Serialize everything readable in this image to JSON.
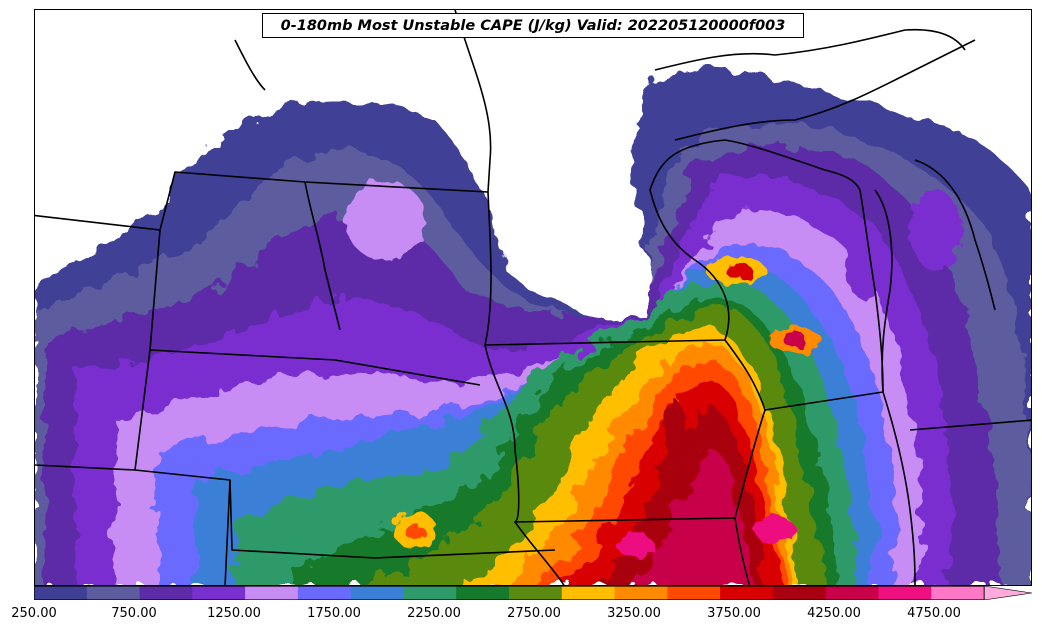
{
  "title": "0-180mb Most Unstable CAPE (J/kg) Valid: 202205120000f003",
  "colorbar": {
    "min": 250,
    "max": 5000,
    "step": 250,
    "extend": "max",
    "colors": [
      "#3f3f96",
      "#5c5c9e",
      "#5d2aa8",
      "#7a2fd0",
      "#c88cf5",
      "#6a6aff",
      "#3a80d6",
      "#2f9a6a",
      "#157a2c",
      "#5a8a10",
      "#ffbf00",
      "#ff8a00",
      "#ff4a00",
      "#d80000",
      "#a80010",
      "#c8004a",
      "#ee1080",
      "#ff78c8",
      "#ffaadd"
    ],
    "ticks": [
      {
        "label": "250.00",
        "value": 250
      },
      {
        "label": "750.00",
        "value": 750
      },
      {
        "label": "1250.00",
        "value": 1250
      },
      {
        "label": "1750.00",
        "value": 1750
      },
      {
        "label": "2250.00",
        "value": 2250
      },
      {
        "label": "2750.00",
        "value": 2750
      },
      {
        "label": "3250.00",
        "value": 3250
      },
      {
        "label": "3750.00",
        "value": 3750
      },
      {
        "label": "4250.00",
        "value": 4250
      },
      {
        "label": "4750.00",
        "value": 4750
      }
    ]
  },
  "map": {
    "field": "CAPE",
    "units": "J/kg",
    "region": "Upper Midwest / Northern Plains"
  }
}
